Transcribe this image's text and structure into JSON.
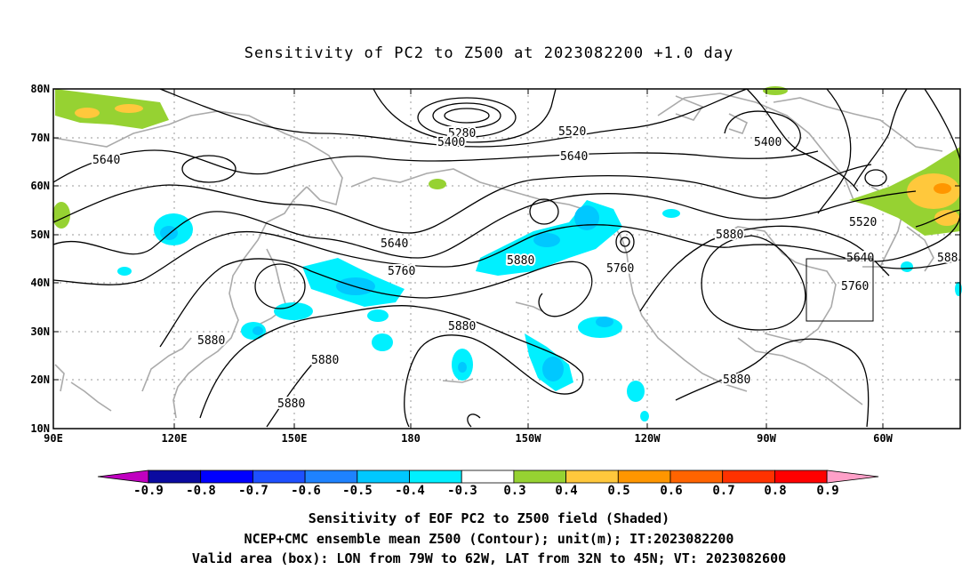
{
  "title": "Sensitivity of PC2 to Z500 at 2023082200 +1.0 day",
  "lat_ticks": [
    "80N",
    "70N",
    "60N",
    "50N",
    "40N",
    "30N",
    "20N",
    "10N"
  ],
  "lon_ticks": [
    "90E",
    "120E",
    "150E",
    "180",
    "150W",
    "120W",
    "90W",
    "60W"
  ],
  "contour_labels": [
    {
      "text": "5280"
    },
    {
      "text": "5400"
    },
    {
      "text": "5520"
    },
    {
      "text": "5400"
    },
    {
      "text": "5640"
    },
    {
      "text": "5640"
    },
    {
      "text": "5640"
    },
    {
      "text": "5520"
    },
    {
      "text": "5880"
    },
    {
      "text": "5880"
    },
    {
      "text": "5760"
    },
    {
      "text": "5760"
    },
    {
      "text": "5640"
    },
    {
      "text": "5760"
    },
    {
      "text": "588"
    },
    {
      "text": "5880"
    },
    {
      "text": "5880"
    },
    {
      "text": "5880"
    },
    {
      "text": "5880"
    },
    {
      "text": "5880"
    }
  ],
  "colorbar": {
    "labels": [
      "-0.9",
      "-0.8",
      "-0.7",
      "-0.6",
      "-0.5",
      "-0.4",
      "-0.3",
      "0.3",
      "0.4",
      "0.5",
      "0.6",
      "0.7",
      "0.8",
      "0.9"
    ],
    "colors": [
      "#c000c0",
      "#0a0aa0",
      "#0000ff",
      "#1e50ff",
      "#1e82ff",
      "#00c8ff",
      "#00f0ff",
      "#ffffff",
      "#96d232",
      "#ffc83c",
      "#ff9600",
      "#ff6400",
      "#ff3200",
      "#ff0000",
      "#ffa0c8"
    ]
  },
  "captions": [
    "Sensitivity of EOF PC2 to Z500 field (Shaded)",
    "NCEP+CMC ensemble mean Z500 (Contour); unit(m); IT:2023082200",
    "Valid area (box): LON from 79W to 62W, LAT from 32N to 45N; VT: 2023082600"
  ]
}
